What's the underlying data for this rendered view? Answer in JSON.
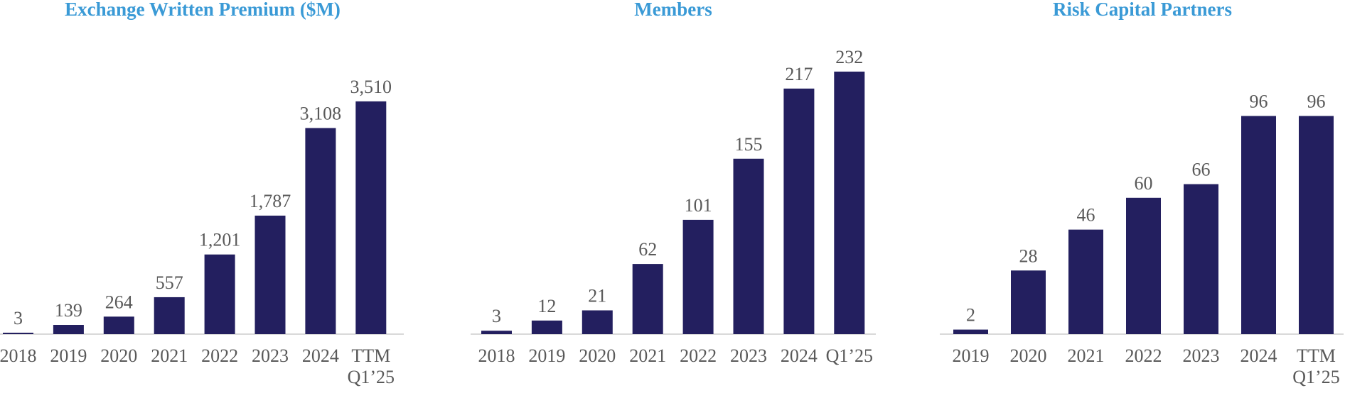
{
  "colors": {
    "bar": "#231f5f",
    "title": "#3a9ad6",
    "text": "#595959",
    "axis": "#d9d9d9"
  },
  "chart_data": [
    {
      "type": "bar",
      "title": "Exchange Written Premium ($M)",
      "categories": [
        "2018",
        "2019",
        "2020",
        "2021",
        "2022",
        "2023",
        "2024",
        "TTM Q1’25"
      ],
      "values": [
        3,
        139,
        264,
        557,
        1201,
        1787,
        3108,
        3510
      ],
      "labels": [
        "3",
        "139",
        "264",
        "557",
        "1,201",
        "1,787",
        "3,108",
        "3,510"
      ],
      "ylim": [
        0,
        4215
      ],
      "grid": false,
      "legend": "none"
    },
    {
      "type": "bar",
      "title": "Members",
      "categories": [
        "2018",
        "2019",
        "2020",
        "2021",
        "2022",
        "2023",
        "2024",
        "Q1’25"
      ],
      "values": [
        3,
        12,
        21,
        62,
        101,
        155,
        217,
        232
      ],
      "labels": [
        "3",
        "12",
        "21",
        "62",
        "101",
        "155",
        "217",
        "232"
      ],
      "ylim": [
        0,
        247
      ],
      "grid": false,
      "legend": "none"
    },
    {
      "type": "bar",
      "title": "Risk Capital Partners",
      "categories": [
        "2019",
        "2020",
        "2021",
        "2022",
        "2023",
        "2024",
        "TTM Q1’25"
      ],
      "values": [
        2,
        28,
        46,
        60,
        66,
        96,
        96
      ],
      "labels": [
        "2",
        "28",
        "46",
        "60",
        "66",
        "96",
        "96"
      ],
      "ylim": [
        0,
        123
      ],
      "grid": false,
      "legend": "none"
    }
  ]
}
